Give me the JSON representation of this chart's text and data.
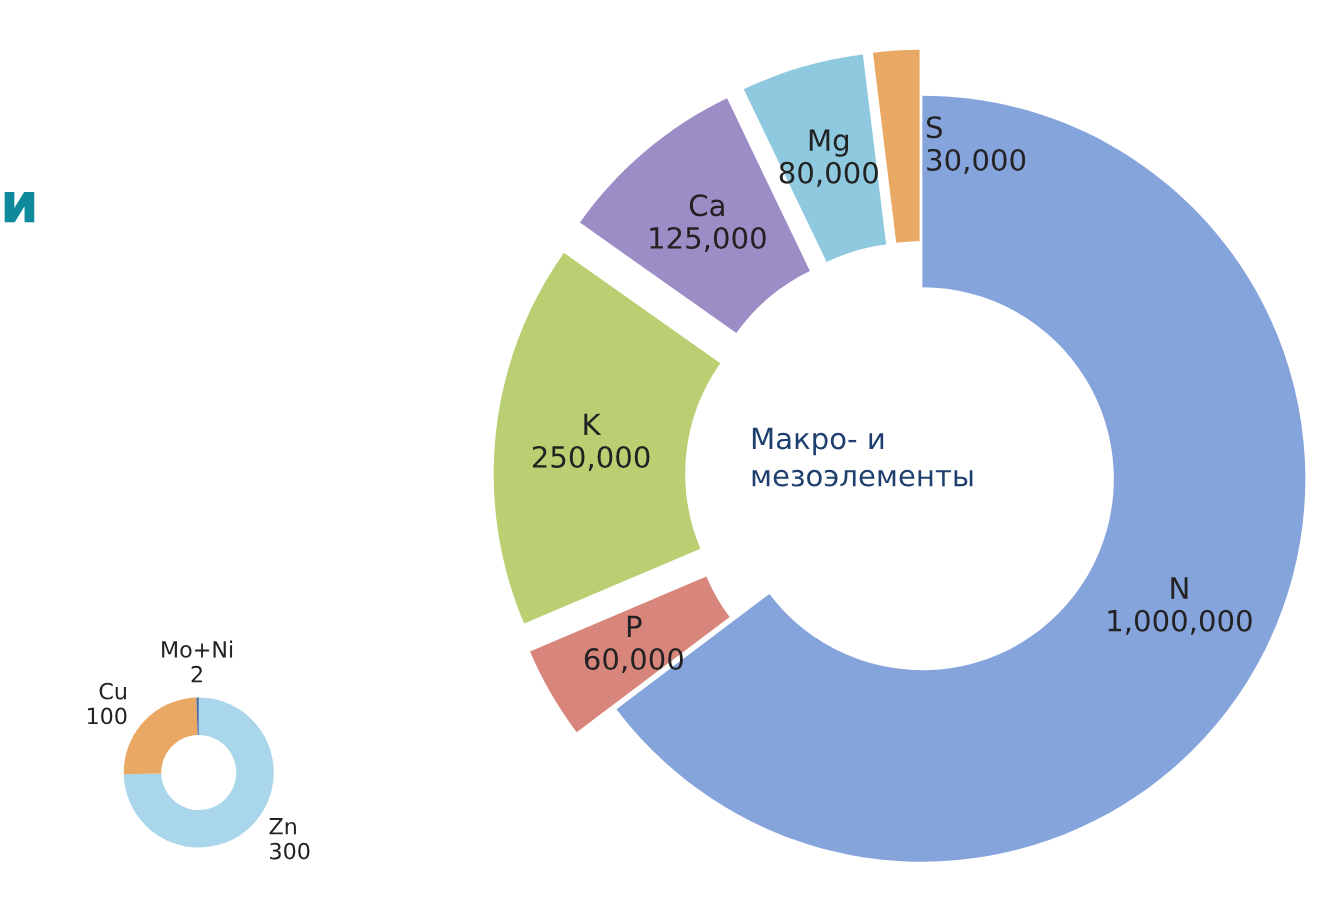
{
  "chart_data": [
    {
      "type": "donut",
      "categories": [
        "N",
        "P",
        "K",
        "Ca",
        "Mg",
        "S"
      ],
      "values": [
        1000000,
        60000,
        250000,
        125000,
        80000,
        30000
      ],
      "colors": [
        "#86a4dc",
        "#d8857c",
        "#b9cf72",
        "#9d8dc6",
        "#8ec9e0",
        "#e9a964"
      ],
      "value_labels": [
        "1,000,000",
        "60,000",
        "250,000",
        "125,000",
        "80,000",
        "30,000"
      ],
      "annotations": [
        "Макро- и\nмезоэлементы",
        "и"
      ]
    },
    {
      "type": "donut",
      "categories": [
        "Zn",
        "Cu",
        "Mo+Ni"
      ],
      "values": [
        300,
        100,
        2
      ],
      "colors": [
        "#a9d6ea",
        "#e9a964",
        "#4a6aa6"
      ],
      "value_labels": [
        "300",
        "100",
        "2"
      ]
    }
  ]
}
